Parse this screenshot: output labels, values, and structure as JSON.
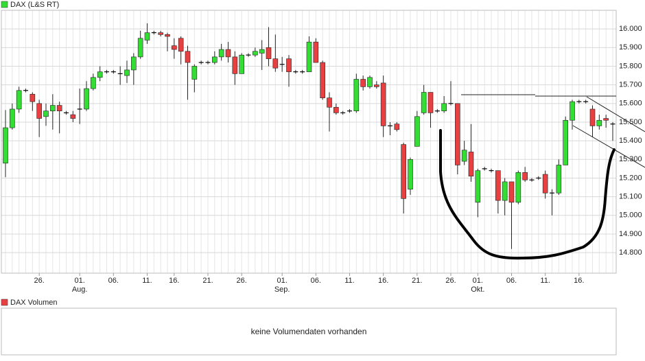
{
  "chart_data": {
    "type": "candlestick",
    "name": "DAX (L&S RT)",
    "up_color": "#33dd33",
    "down_color": "#e84040",
    "doji_color": "#000000",
    "grid": true,
    "categories": [
      null,
      null,
      null,
      null,
      null,
      "26.",
      null,
      null,
      null,
      null,
      null,
      "01.",
      null,
      null,
      null,
      null,
      "06.",
      null,
      null,
      null,
      null,
      "11.",
      null,
      null,
      null,
      "16.",
      null,
      null,
      null,
      null,
      "21.",
      null,
      null,
      null,
      null,
      "26.",
      null,
      null,
      null,
      null,
      null,
      "01.",
      null,
      null,
      null,
      null,
      "06.",
      null,
      null,
      null,
      null,
      "11.",
      null,
      null,
      null,
      null,
      "16.",
      null,
      null,
      null,
      null,
      "21.",
      null,
      null,
      null,
      null,
      "26.",
      null,
      null,
      null,
      "01.",
      null,
      null,
      null,
      null,
      "06.",
      null,
      null,
      null,
      null,
      "11.",
      null,
      null,
      null,
      null,
      "16.",
      null,
      null,
      null,
      null,
      null
    ],
    "months": [
      null,
      null,
      null,
      null,
      null,
      null,
      null,
      null,
      null,
      null,
      null,
      "Aug.",
      null,
      null,
      null,
      null,
      null,
      null,
      null,
      null,
      null,
      null,
      null,
      null,
      null,
      null,
      null,
      null,
      null,
      null,
      null,
      null,
      null,
      null,
      null,
      null,
      null,
      null,
      null,
      null,
      null,
      "Sep.",
      null,
      null,
      null,
      null,
      null,
      null,
      null,
      null,
      null,
      null,
      null,
      null,
      null,
      null,
      null,
      null,
      null,
      null,
      null,
      null,
      null,
      null,
      null,
      null,
      null,
      null,
      null,
      null,
      "Okt.",
      null,
      null,
      null,
      null,
      null,
      null,
      null,
      null,
      null,
      null,
      null,
      null,
      null,
      null,
      null,
      null,
      null,
      null,
      null,
      null
    ],
    "open": [
      15280,
      15470,
      15570,
      15670,
      15650,
      15600,
      15530,
      15560,
      15590,
      15550,
      15540,
      15570,
      15570,
      15680,
      15740,
      15770,
      15770,
      15760,
      15750,
      15780,
      15850,
      15940,
      15980,
      15980,
      15970,
      15910,
      15950,
      15880,
      15730,
      15820,
      15820,
      15820,
      15850,
      15890,
      15850,
      15760,
      15860,
      15860,
      15870,
      15900,
      15840,
      15810,
      15840,
      15770,
      15770,
      15770,
      15930,
      15820,
      15630,
      15580,
      15550,
      15560,
      15560,
      15730,
      15690,
      15700,
      15710,
      15480,
      15490,
      15380,
      15140,
      15370,
      15550,
      15660,
      15560,
      15560,
      15600,
      15600,
      15290,
      15340,
      15070,
      15250,
      15240,
      15240,
      15080,
      15180,
      15070,
      15230,
      15190,
      15200,
      15220,
      15120,
      15120,
      15270,
      15510,
      15610,
      15610,
      15570,
      15480,
      15520,
      15490
    ],
    "high": [
      15565,
      15600,
      15690,
      15680,
      15660,
      15620,
      15600,
      15650,
      15610,
      15560,
      15560,
      15680,
      15720,
      15760,
      15800,
      15780,
      15780,
      15800,
      15830,
      15870,
      15990,
      16030,
      15990,
      15990,
      15980,
      15950,
      15960,
      15910,
      15810,
      15830,
      15830,
      15880,
      15920,
      15930,
      15880,
      15870,
      15870,
      15900,
      15940,
      16010,
      15970,
      15850,
      15860,
      15780,
      15780,
      15960,
      15950,
      15830,
      15660,
      15600,
      15560,
      15570,
      15760,
      15750,
      15750,
      15720,
      15750,
      15500,
      15500,
      15390,
      15310,
      15560,
      15700,
      15660,
      15570,
      15640,
      15720,
      15600,
      15400,
      15490,
      15250,
      15260,
      15250,
      15240,
      15200,
      15180,
      15240,
      15260,
      15200,
      15210,
      15240,
      15140,
      15300,
      15530,
      15620,
      15620,
      15620,
      15590,
      15540,
      15540,
      15500
    ],
    "low": [
      15205,
      15460,
      15550,
      15660,
      15560,
      15420,
      15480,
      15460,
      15440,
      15540,
      15500,
      15490,
      15560,
      15670,
      15720,
      15760,
      15760,
      15700,
      15710,
      15700,
      15840,
      15920,
      15970,
      15960,
      15880,
      15840,
      15810,
      15620,
      15660,
      15810,
      15810,
      15810,
      15830,
      15820,
      15700,
      15760,
      15850,
      15850,
      15780,
      15800,
      15770,
      15770,
      15690,
      15760,
      15760,
      15770,
      15820,
      15620,
      15450,
      15540,
      15540,
      15550,
      15550,
      15670,
      15680,
      15680,
      15420,
      15430,
      15450,
      15010,
      15110,
      15370,
      15540,
      15470,
      15550,
      15550,
      15590,
      15220,
      15270,
      15180,
      14990,
      15240,
      15230,
      15010,
      15000,
      14820,
      15060,
      15180,
      15180,
      15190,
      15090,
      15000,
      15110,
      15270,
      15460,
      15600,
      15600,
      15420,
      15460,
      15470,
      15400
    ],
    "close": [
      15470,
      15570,
      15670,
      15670,
      15610,
      15520,
      15560,
      15590,
      15560,
      15550,
      15520,
      15570,
      15680,
      15740,
      15770,
      15770,
      15770,
      15760,
      15780,
      15850,
      15950,
      15980,
      15980,
      15970,
      15960,
      15890,
      15880,
      15820,
      15800,
      15820,
      15820,
      15850,
      15890,
      15850,
      15760,
      15860,
      15860,
      15880,
      15890,
      15840,
      15790,
      15810,
      15770,
      15770,
      15770,
      15930,
      15820,
      15630,
      15580,
      15550,
      15550,
      15560,
      15730,
      15690,
      15740,
      15690,
      15480,
      15480,
      15460,
      15090,
      15300,
      15530,
      15660,
      15550,
      15560,
      15600,
      15600,
      15270,
      15350,
      15210,
      15240,
      15250,
      15240,
      15080,
      15180,
      15070,
      15230,
      15190,
      15190,
      15200,
      15120,
      15120,
      15270,
      15510,
      15610,
      15610,
      15610,
      15480,
      15510,
      15510,
      15490
    ],
    "ylim": [
      14690,
      16100
    ],
    "yticks": [
      {
        "value": 14800,
        "label": "14.800"
      },
      {
        "value": 14900,
        "label": "14.900"
      },
      {
        "value": 15000,
        "label": "15.000"
      },
      {
        "value": 15100,
        "label": "15.100"
      },
      {
        "value": 15200,
        "label": "15.200"
      },
      {
        "value": 15300,
        "label": "15.300"
      },
      {
        "value": 15400,
        "label": "15.400"
      },
      {
        "value": 15500,
        "label": "15.500"
      },
      {
        "value": 15600,
        "label": "15.600"
      },
      {
        "value": 15700,
        "label": "15.700"
      },
      {
        "value": 15800,
        "label": "15.800"
      },
      {
        "value": 15900,
        "label": "15.900"
      },
      {
        "value": 16000,
        "label": "16.000"
      }
    ]
  },
  "volume_panel": {
    "title": "DAX Volumen",
    "message": "keine Volumendaten vorhanden"
  }
}
